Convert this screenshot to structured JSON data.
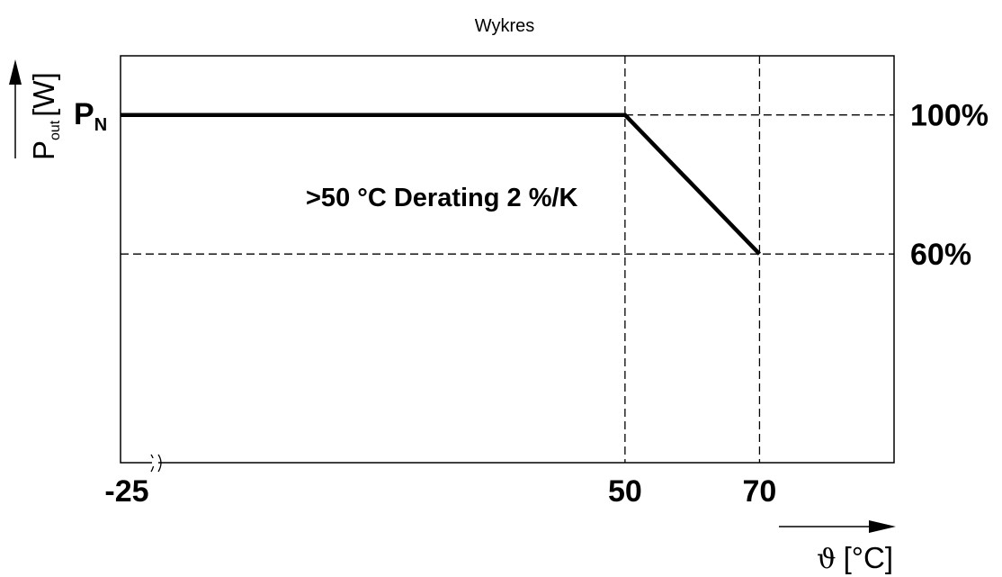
{
  "chart_data": {
    "type": "line",
    "title": "Wykres",
    "xlabel": {
      "symbol": "ϑ",
      "unit": "[°C]"
    },
    "ylabel": {
      "main": "P",
      "subscript": "out",
      "unit": "[W]"
    },
    "xlim": [
      -25,
      90
    ],
    "ylim": [
      0,
      117
    ],
    "x_tick_labels": [
      {
        "value": -25,
        "label": "-25"
      },
      {
        "value": 50,
        "label": "50"
      },
      {
        "value": 70,
        "label": "70"
      }
    ],
    "y_tick_labels_right": [
      {
        "value": 100,
        "label": "100%"
      },
      {
        "value": 60,
        "label": "60%"
      }
    ],
    "y_tick_label_left": {
      "value": 100,
      "main": "P",
      "subscript": "N"
    },
    "series": [
      {
        "x": [
          -25,
          50,
          70
        ],
        "y": [
          100,
          100,
          60
        ]
      }
    ],
    "reference_lines": {
      "vertical": [
        50,
        70
      ],
      "horizontal": [
        100,
        60
      ]
    },
    "annotation": ">50 °C Derating 2 %/K",
    "axis_break": true,
    "grid": false,
    "line_color": "#000000"
  }
}
